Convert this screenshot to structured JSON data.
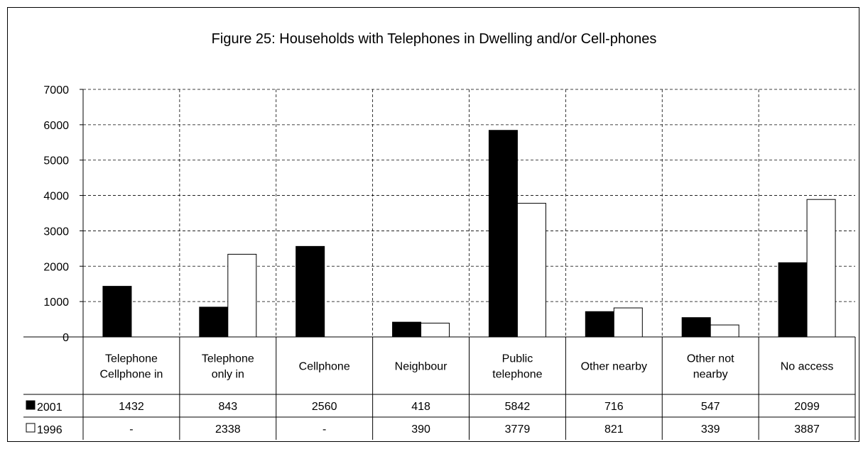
{
  "chart_data": {
    "type": "bar",
    "title": "Figure 25: Households with Telephones in Dwelling and/or Cell-phones",
    "categories": [
      [
        "Telephone",
        "Cellphone in"
      ],
      [
        "Telephone",
        "only in"
      ],
      [
        "Cellphone"
      ],
      [
        "Neighbour"
      ],
      [
        "Public",
        "telephone"
      ],
      [
        "Other nearby"
      ],
      [
        "Other not",
        "nearby"
      ],
      [
        "No access"
      ]
    ],
    "series": [
      {
        "name": "2001",
        "color": "#000000",
        "values": [
          1432,
          843,
          2560,
          418,
          5842,
          716,
          547,
          2099
        ],
        "labels": [
          "1432",
          "843",
          "2560",
          "418",
          "5842",
          "716",
          "547",
          "2099"
        ]
      },
      {
        "name": "1996",
        "color": "#ffffff",
        "values": [
          null,
          2338,
          null,
          390,
          3779,
          821,
          339,
          3887
        ],
        "labels": [
          "-",
          "2338",
          "-",
          "390",
          "3779",
          "821",
          "339",
          "3887"
        ]
      }
    ],
    "ylim": [
      0,
      7000
    ],
    "yticks": [
      0,
      1000,
      2000,
      3000,
      4000,
      5000,
      6000,
      7000
    ],
    "grid": true,
    "legend": "data-table"
  }
}
